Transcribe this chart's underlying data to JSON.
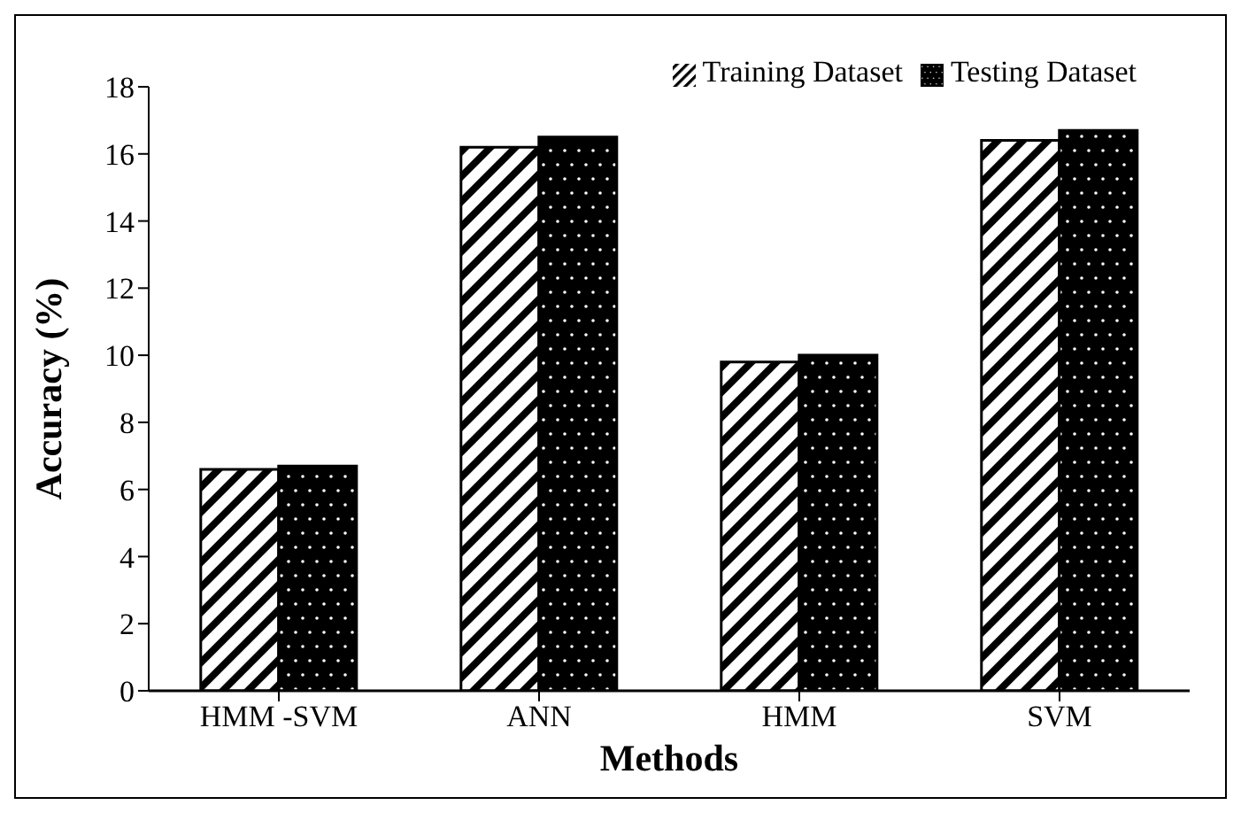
{
  "chart_data": {
    "type": "bar",
    "xlabel": "Methods",
    "ylabel": "Accuracy (%)",
    "categories": [
      "HMM -SVM",
      "ANN",
      "HMM",
      "SVM"
    ],
    "series": [
      {
        "name": "Training Dataset",
        "color": "#000000",
        "values": [
          6.6,
          16.2,
          9.8,
          16.4
        ]
      },
      {
        "name": "Testing Dataset",
        "color": "#000000",
        "values": [
          6.7,
          16.5,
          10.0,
          16.7
        ]
      }
    ],
    "ylim": [
      0,
      18
    ],
    "yticks": [
      0,
      2,
      4,
      6,
      8,
      10,
      12,
      14,
      16,
      18
    ],
    "grid": false,
    "legend": "top right"
  }
}
